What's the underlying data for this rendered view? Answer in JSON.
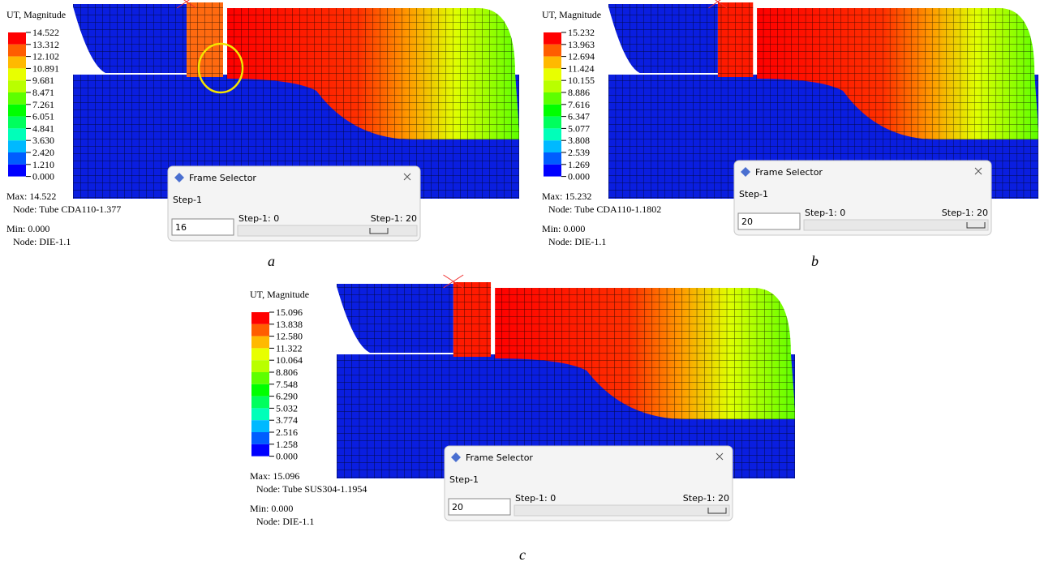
{
  "legend_colors": [
    "#ff0000",
    "#ff5d00",
    "#ffb900",
    "#e8ff00",
    "#b9ff00",
    "#5dff00",
    "#00ff00",
    "#00ff5d",
    "#00ffb9",
    "#00b9ff",
    "#005dff",
    "#0000ff"
  ],
  "panels": [
    {
      "caption": "a",
      "legend_title": "UT, Magnitude",
      "legend_values": [
        "14.522",
        "13.312",
        "12.102",
        "10.891",
        "9.681",
        "8.471",
        "7.261",
        "6.051",
        "4.841",
        "3.630",
        "2.420",
        "1.210",
        "0.000"
      ],
      "max": "Max: 14.522",
      "max_node": "Node: Tube CDA110-1.377",
      "min": "Min: 0.000",
      "min_node": "Node: DIE-1.1",
      "dialog": {
        "title": "Frame Selector",
        "step": "Step-1",
        "frame": "16",
        "range_start": "Step-1: 0",
        "range_end": "Step-1: 20"
      }
    },
    {
      "caption": "b",
      "legend_title": "UT, Magnitude",
      "legend_values": [
        "15.232",
        "13.963",
        "12.694",
        "11.424",
        "10.155",
        "8.886",
        "7.616",
        "6.347",
        "5.077",
        "3.808",
        "2.539",
        "1.269",
        "0.000"
      ],
      "max": "Max: 15.232",
      "max_node": "Node: Tube CDA110-1.1802",
      "min": "Min: 0.000",
      "min_node": "Node: DIE-1.1",
      "dialog": {
        "title": "Frame Selector",
        "step": "Step-1",
        "frame": "20",
        "range_start": "Step-1: 0",
        "range_end": "Step-1: 20"
      }
    },
    {
      "caption": "c",
      "legend_title": "UT, Magnitude",
      "legend_values": [
        "15.096",
        "13.838",
        "12.580",
        "11.322",
        "10.064",
        "8.806",
        "7.548",
        "6.290",
        "5.032",
        "3.774",
        "2.516",
        "1.258",
        "0.000"
      ],
      "max": "Max: 15.096",
      "max_node": "Node: Tube SUS304-1.1954",
      "min": "Min: 0.000",
      "min_node": "Node: DIE-1.1",
      "dialog": {
        "title": "Frame Selector",
        "step": "Step-1",
        "frame": "20",
        "range_start": "Step-1: 0",
        "range_end": "Step-1: 20"
      }
    }
  ]
}
